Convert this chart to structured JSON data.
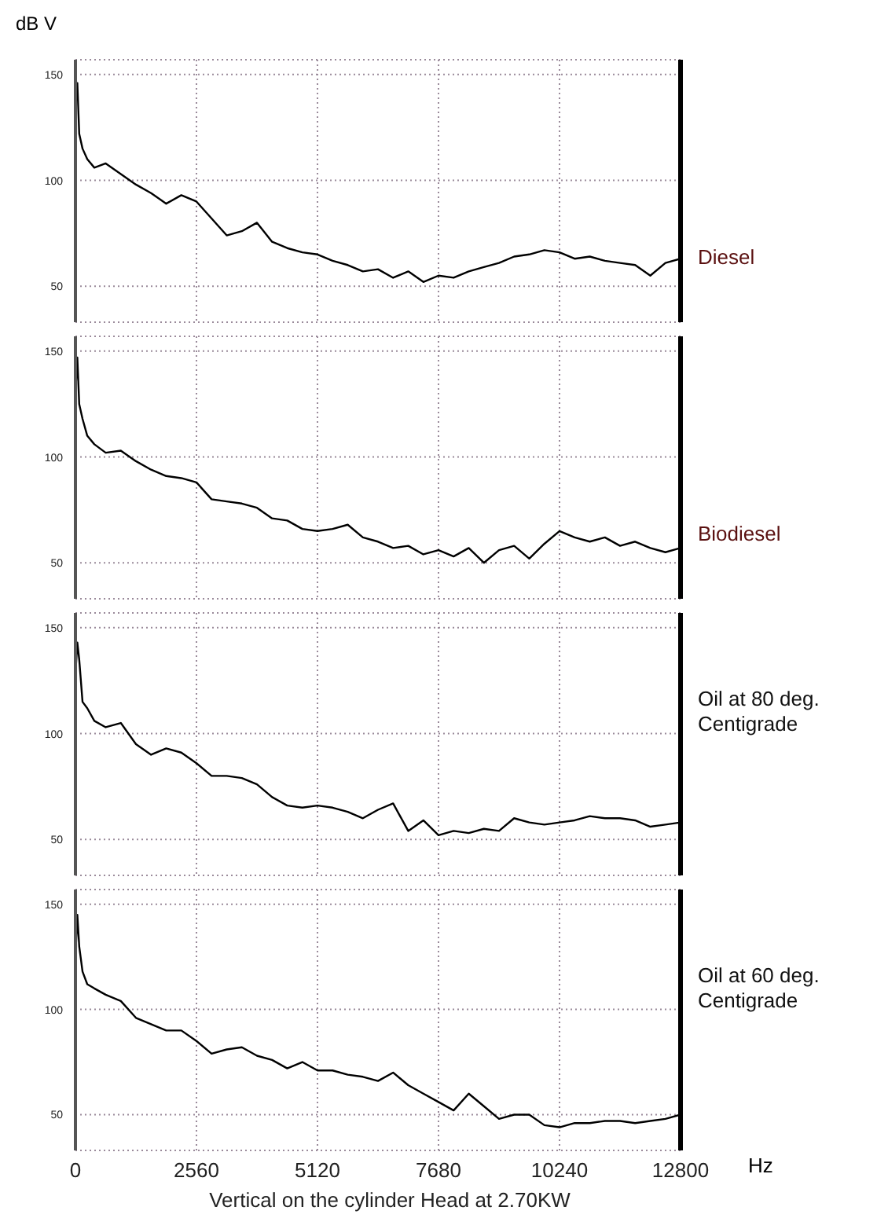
{
  "chart_data": [
    {
      "type": "line",
      "annotations": [
        "Diesel"
      ],
      "ylabel": "dB V",
      "tick_labels": "y",
      "grid": true,
      "color": "#000000",
      "xlim": [
        0,
        12800
      ],
      "xticks": [
        0,
        2560,
        5120,
        7680,
        10240,
        12800
      ],
      "ylim": [
        33,
        157
      ],
      "yticks": [
        50,
        100,
        150
      ],
      "x": [
        0,
        40,
        80,
        150,
        250,
        400,
        640,
        960,
        1280,
        1600,
        1920,
        2240,
        2560,
        2880,
        3200,
        3520,
        3840,
        4160,
        4480,
        4800,
        5120,
        5440,
        5760,
        6080,
        6400,
        6720,
        7040,
        7360,
        7680,
        8000,
        8320,
        8640,
        8960,
        9280,
        9600,
        9920,
        10240,
        10560,
        10880,
        11200,
        11520,
        11840,
        12160,
        12480,
        12800
      ],
      "values": [
        135,
        146,
        122,
        115,
        110,
        106,
        108,
        103,
        98,
        94,
        89,
        93,
        90,
        82,
        74,
        76,
        80,
        71,
        68,
        66,
        65,
        62,
        60,
        57,
        58,
        54,
        57,
        52,
        55,
        54,
        57,
        59,
        61,
        64,
        65,
        67,
        66,
        63,
        64,
        62,
        61,
        60,
        55,
        61,
        63
      ]
    },
    {
      "type": "line",
      "annotations": [
        "Biodiesel"
      ],
      "tick_labels": "y",
      "grid": true,
      "color": "#000000",
      "xlim": [
        0,
        12800
      ],
      "xticks": [
        0,
        2560,
        5120,
        7680,
        10240,
        12800
      ],
      "ylim": [
        33,
        157
      ],
      "yticks": [
        50,
        100,
        150
      ],
      "x": [
        0,
        40,
        80,
        150,
        250,
        400,
        640,
        960,
        1280,
        1600,
        1920,
        2240,
        2560,
        2880,
        3200,
        3520,
        3840,
        4160,
        4480,
        4800,
        5120,
        5440,
        5760,
        6080,
        6400,
        6720,
        7040,
        7360,
        7680,
        8000,
        8320,
        8640,
        8960,
        9280,
        9600,
        9920,
        10240,
        10560,
        10880,
        11200,
        11520,
        11840,
        12160,
        12480,
        12800
      ],
      "values": [
        130,
        147,
        125,
        118,
        110,
        106,
        102,
        103,
        98,
        94,
        91,
        90,
        88,
        80,
        79,
        78,
        76,
        71,
        70,
        66,
        65,
        66,
        68,
        62,
        60,
        57,
        58,
        54,
        56,
        53,
        57,
        50,
        56,
        58,
        52,
        59,
        65,
        62,
        60,
        62,
        58,
        60,
        57,
        55,
        57
      ]
    },
    {
      "type": "line",
      "annotations": [
        "Oil at 80 deg. Centigrade"
      ],
      "tick_labels": "y",
      "grid": true,
      "color": "#000000",
      "xlim": [
        0,
        12800
      ],
      "xticks": [
        0,
        2560,
        5120,
        7680,
        10240,
        12800
      ],
      "ylim": [
        33,
        157
      ],
      "yticks": [
        50,
        100,
        150
      ],
      "x": [
        0,
        40,
        80,
        150,
        250,
        400,
        640,
        960,
        1280,
        1600,
        1920,
        2240,
        2560,
        2880,
        3200,
        3520,
        3840,
        4160,
        4480,
        4800,
        5120,
        5440,
        5760,
        6080,
        6400,
        6720,
        7040,
        7360,
        7680,
        8000,
        8320,
        8640,
        8960,
        9280,
        9600,
        9920,
        10240,
        10560,
        10880,
        11200,
        11520,
        11840,
        12160,
        12480,
        12800
      ],
      "values": [
        128,
        143,
        135,
        115,
        112,
        106,
        103,
        105,
        95,
        90,
        93,
        91,
        86,
        80,
        80,
        79,
        76,
        70,
        66,
        65,
        66,
        65,
        63,
        60,
        64,
        67,
        54,
        59,
        52,
        54,
        53,
        55,
        54,
        60,
        58,
        57,
        58,
        59,
        61,
        60,
        60,
        59,
        56,
        57,
        58
      ]
    },
    {
      "type": "line",
      "xlabel": "Hz",
      "annotations": [
        "Oil at 60 deg. Centigrade",
        "Vertical on the cylinder Head at 2.70KW"
      ],
      "grid": true,
      "color": "#000000",
      "xlim": [
        0,
        12800
      ],
      "xticks": [
        0,
        2560,
        5120,
        7680,
        10240,
        12800
      ],
      "ylim": [
        33,
        157
      ],
      "yticks": [
        50,
        100,
        150
      ],
      "x": [
        0,
        40,
        80,
        150,
        250,
        400,
        640,
        960,
        1280,
        1600,
        1920,
        2240,
        2560,
        2880,
        3200,
        3520,
        3840,
        4160,
        4480,
        4800,
        5120,
        5440,
        5760,
        6080,
        6400,
        6720,
        7040,
        7360,
        7680,
        8000,
        8320,
        8640,
        8960,
        9280,
        9600,
        9920,
        10240,
        10560,
        10880,
        11200,
        11520,
        11840,
        12160,
        12480,
        12800
      ],
      "values": [
        125,
        145,
        130,
        118,
        112,
        110,
        107,
        104,
        96,
        93,
        90,
        90,
        85,
        79,
        81,
        82,
        78,
        76,
        72,
        75,
        71,
        71,
        69,
        68,
        66,
        70,
        64,
        60,
        56,
        52,
        60,
        54,
        48,
        50,
        50,
        45,
        44,
        46,
        46,
        47,
        47,
        46,
        47,
        48,
        50
      ]
    }
  ]
}
